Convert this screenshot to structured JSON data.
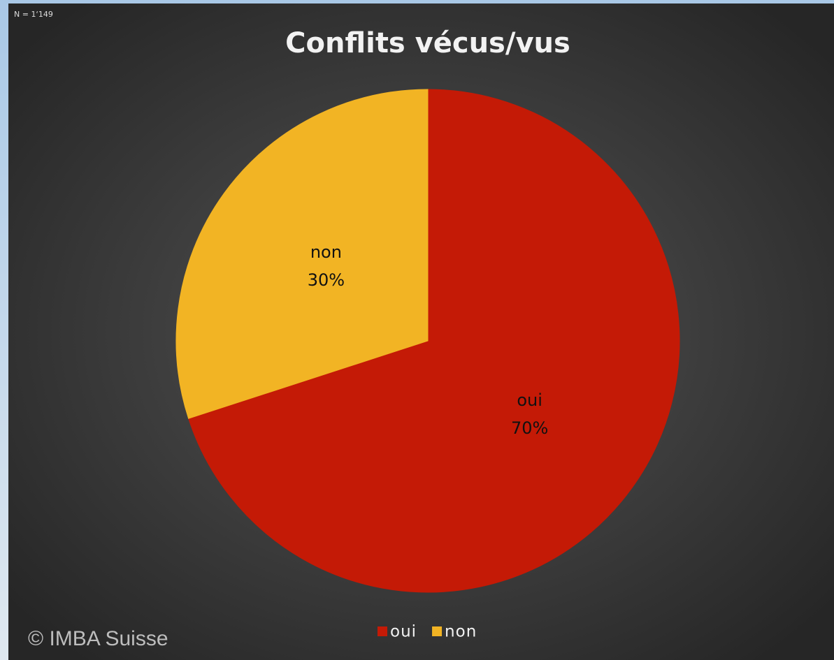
{
  "chart_data": {
    "type": "pie",
    "title": "Conflits vécus/vus",
    "note": "N = 1‘149",
    "watermark": "© IMBA Suisse",
    "categories": [
      "oui",
      "non"
    ],
    "values": [
      70,
      30
    ],
    "value_labels": [
      "70%",
      "30%"
    ],
    "colors": [
      "#c41a06",
      "#f2b424"
    ],
    "legend": "bottom"
  }
}
